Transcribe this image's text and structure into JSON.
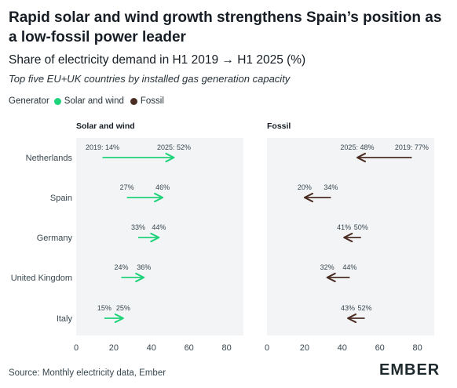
{
  "title": "Rapid solar and wind growth strengthens Spain’s position as a low-fossil power leader",
  "subtitle": "Share of electricity demand in H1 2019 → H1 2025 (%)",
  "note": "Top five EU+UK countries by installed gas generation capacity",
  "legend": {
    "title": "Generator",
    "items": [
      {
        "label": "Solar and wind",
        "color": "#1fd37a"
      },
      {
        "label": "Fossil",
        "color": "#4a2e24"
      }
    ]
  },
  "source": "Source: Monthly electricity data, Ember",
  "logo": "EMBER",
  "chart_data": {
    "type": "arrow-dumbbell",
    "categories": [
      "Netherlands",
      "Spain",
      "Germany",
      "United Kingdom",
      "Italy"
    ],
    "xlim": [
      0,
      90
    ],
    "xticks": [
      0,
      20,
      40,
      60,
      80
    ],
    "panels": [
      {
        "name": "Solar and wind",
        "color": "#1fd37a",
        "start": [
          14,
          27,
          33,
          24,
          15
        ],
        "end": [
          52,
          46,
          44,
          36,
          25
        ],
        "start_labels": [
          "2019: 14%",
          "27%",
          "33%",
          "24%",
          "15%"
        ],
        "end_labels": [
          "2025: 52%",
          "46%",
          "44%",
          "36%",
          "25%"
        ]
      },
      {
        "name": "Fossil",
        "color": "#4a2e24",
        "start": [
          77,
          34,
          50,
          44,
          52
        ],
        "end": [
          48,
          20,
          41,
          32,
          43
        ],
        "start_labels": [
          "2019: 77%",
          "34%",
          "50%",
          "44%",
          "52%"
        ],
        "end_labels": [
          "2025: 48%",
          "20%",
          "41%",
          "32%",
          "43%"
        ]
      }
    ]
  }
}
